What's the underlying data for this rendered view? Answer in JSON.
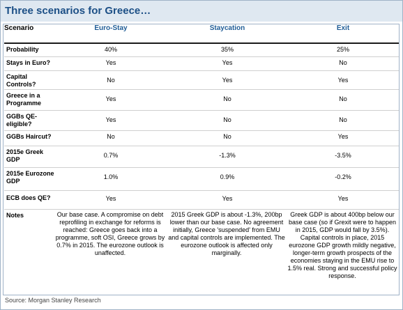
{
  "title": "Three scenarios for Greece…",
  "header": {
    "scenario": "Scenario",
    "euro_stay": "Euro-Stay",
    "staycation": "Staycation",
    "exit": "Exit"
  },
  "rows": [
    {
      "label": "Probability",
      "euro_stay": "40%",
      "staycation": "35%",
      "exit": "25%"
    },
    {
      "label": "Stays in Euro?",
      "euro_stay": "Yes",
      "staycation": "Yes",
      "exit": "No"
    },
    {
      "label": "Capital Controls?",
      "euro_stay": "No",
      "staycation": "Yes",
      "exit": "Yes"
    },
    {
      "label": "Greece in a Programme",
      "euro_stay": "Yes",
      "staycation": "No",
      "exit": "No"
    },
    {
      "label": "GGBs QE-eligible?",
      "euro_stay": "Yes",
      "staycation": "No",
      "exit": "No"
    },
    {
      "label": "GGBs Haircut?",
      "euro_stay": "No",
      "staycation": "No",
      "exit": "Yes"
    },
    {
      "label": "2015e Greek GDP",
      "euro_stay": "0.7%",
      "staycation": "-1.3%",
      "exit": "-3.5%"
    },
    {
      "label": "2015e Eurozone GDP",
      "euro_stay": "1.0%",
      "staycation": "0.9%",
      "exit": "-0.2%"
    },
    {
      "label": "ECB does QE?",
      "euro_stay": "Yes",
      "staycation": "Yes",
      "exit": "Yes"
    }
  ],
  "notes": {
    "label": "Notes",
    "euro_stay": "Our base case. A compromise on debt reprofiling in exchange for reforms is reached: Greece goes back into a programme, soft OSI, Greece grows by 0.7% in 2015. The eurozone outlook is unaffected.",
    "staycation": "2015 Greek GDP is about -1.3%, 200bp lower than our base case. No agreement initially, Greece 'suspended' from EMU and capital controls are implemented. The eurozone outlook is affected only marginally.",
    "exit": "Greek GDP is about 400bp below our base case (so if Grexit were to happen in 2015, GDP would fall by 3.5%). Capital controls in place, 2015 eurozone GDP growth mildly negative, longer-term growth prospects of the economies staying in the EMU rise to 1.5% real. Strong and successful policy response."
  },
  "source": "Source: Morgan Stanley Research"
}
